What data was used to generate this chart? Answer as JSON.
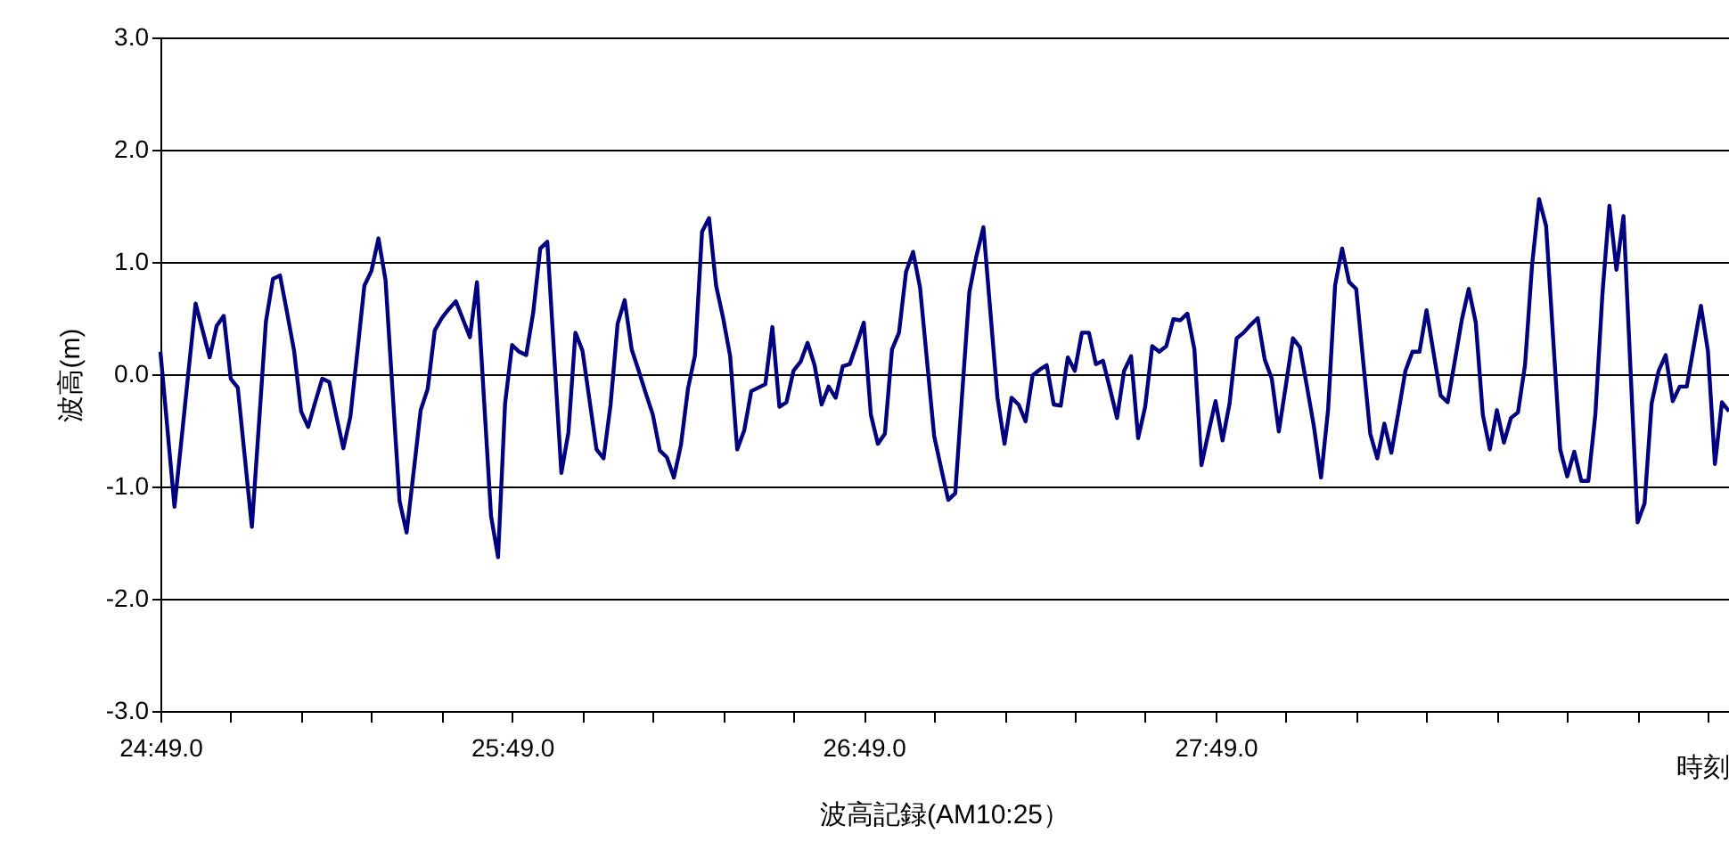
{
  "chart_data": {
    "type": "line",
    "title": "波高記録(AM10:25）",
    "xlabel": "時刻",
    "ylabel": "波高(m)",
    "categories": [
      "24:49.0",
      null,
      null,
      null,
      null,
      null,
      null,
      null,
      null,
      null,
      null,
      null,
      null,
      null,
      null,
      null,
      null,
      null,
      null,
      null,
      null,
      null,
      null,
      null,
      null,
      null,
      null,
      null,
      null,
      null,
      null,
      null,
      null,
      null,
      null,
      null,
      null,
      null,
      null,
      null,
      null,
      null,
      null,
      null,
      null,
      null,
      null,
      null,
      null,
      null,
      "25:49.0",
      null,
      null,
      null,
      null,
      null,
      null,
      null,
      null,
      null,
      null,
      null,
      null,
      null,
      null,
      null,
      null,
      null,
      null,
      null,
      null,
      null,
      null,
      null,
      null,
      null,
      null,
      null,
      null,
      null,
      null,
      null,
      null,
      null,
      null,
      null,
      null,
      null,
      null,
      null,
      null,
      null,
      null,
      null,
      null,
      null,
      null,
      null,
      null,
      null,
      "26:49.0",
      null,
      null,
      null,
      null,
      null,
      null,
      null,
      null,
      null,
      null,
      null,
      null,
      null,
      null,
      null,
      null,
      null,
      null,
      null,
      null,
      null,
      null,
      null,
      null,
      null,
      null,
      null,
      null,
      null,
      null,
      null,
      null,
      null,
      null,
      null,
      null,
      null,
      null,
      null,
      null,
      null,
      null,
      null,
      null,
      null,
      null,
      null,
      null,
      null,
      "27:49.0",
      null,
      null,
      null,
      null,
      null,
      null,
      null,
      null,
      null,
      null,
      null,
      null,
      null,
      null,
      null,
      null,
      null,
      null,
      null,
      null,
      null,
      null,
      null,
      null,
      null,
      null,
      null,
      null,
      null,
      null,
      null,
      null,
      null,
      null,
      null,
      null,
      null,
      null,
      null,
      null,
      null,
      null,
      null,
      null,
      null,
      null,
      null,
      null,
      null,
      null,
      null,
      null,
      null,
      null,
      null,
      null,
      null,
      null,
      null,
      null,
      null,
      null,
      null,
      null,
      null,
      null,
      null,
      null,
      null,
      null,
      null,
      null,
      null
    ],
    "ylim": [
      -3,
      3
    ],
    "yticks": [
      {
        "value": -3,
        "label": "-3.0"
      },
      {
        "value": -2,
        "label": "-2.0"
      },
      {
        "value": -1,
        "label": "-1.0"
      },
      {
        "value": 0,
        "label": "0.0"
      },
      {
        "value": 1,
        "label": "1.0"
      },
      {
        "value": 2,
        "label": "2.0"
      },
      {
        "value": 3,
        "label": "3.0"
      }
    ],
    "grid": "y",
    "marker": "none",
    "line_style": "solid",
    "series": [
      {
        "color": "#000080",
        "values": [
          0.2,
          -0.49,
          -1.18,
          -0.58,
          0.03,
          0.63,
          0.39,
          0.15,
          0.43,
          0.52,
          -0.04,
          -0.12,
          -0.74,
          -1.36,
          -0.45,
          0.47,
          0.85,
          0.88,
          0.55,
          0.21,
          -0.33,
          -0.47,
          -0.25,
          -0.04,
          -0.07,
          -0.37,
          -0.66,
          -0.38,
          0.2,
          0.79,
          0.92,
          1.21,
          0.84,
          -0.15,
          -1.13,
          -1.41,
          -0.87,
          -0.32,
          -0.13,
          0.39,
          0.5,
          0.58,
          0.65,
          0.49,
          0.33,
          0.82,
          -0.22,
          -1.26,
          -1.63,
          -0.26,
          0.26,
          0.2,
          0.17,
          0.55,
          1.12,
          1.18,
          0.15,
          -0.88,
          -0.52,
          0.37,
          0.21,
          -0.23,
          -0.67,
          -0.75,
          -0.27,
          0.45,
          0.66,
          0.22,
          0.03,
          -0.17,
          -0.36,
          -0.68,
          -0.74,
          -0.92,
          -0.63,
          -0.13,
          0.17,
          1.27,
          1.39,
          0.79,
          0.5,
          0.16,
          -0.67,
          -0.5,
          -0.15,
          -0.12,
          -0.09,
          0.42,
          -0.29,
          -0.25,
          0.03,
          0.11,
          0.28,
          0.08,
          -0.27,
          -0.11,
          -0.21,
          0.07,
          0.09,
          0.27,
          0.46,
          -0.36,
          -0.62,
          -0.53,
          0.22,
          0.37,
          0.91,
          1.09,
          0.77,
          0.11,
          -0.55,
          -0.84,
          -1.12,
          -1.06,
          -0.16,
          0.73,
          1.05,
          1.31,
          0.55,
          -0.21,
          -0.62,
          -0.21,
          -0.27,
          -0.42,
          -0.01,
          0.04,
          0.08,
          -0.27,
          -0.28,
          0.15,
          0.03,
          0.37,
          0.37,
          0.09,
          0.12,
          -0.13,
          -0.39,
          0.03,
          0.16,
          -0.57,
          -0.29,
          0.25,
          0.2,
          0.25,
          0.49,
          0.48,
          0.54,
          0.22,
          -0.81,
          -0.52,
          -0.24,
          -0.59,
          -0.26,
          0.32,
          0.37,
          0.44,
          0.5,
          0.13,
          -0.04,
          -0.51,
          -0.1,
          0.32,
          0.24,
          -0.11,
          -0.47,
          -0.92,
          -0.32,
          0.79,
          1.12,
          0.82,
          0.76,
          0.11,
          -0.53,
          -0.75,
          -0.44,
          -0.7,
          -0.34,
          0.03,
          0.2,
          0.2,
          0.57,
          0.19,
          -0.19,
          -0.25,
          0.11,
          0.48,
          0.76,
          0.46,
          -0.36,
          -0.67,
          -0.32,
          -0.61,
          -0.39,
          -0.34,
          0.08,
          0.97,
          1.56,
          1.32,
          0.32,
          -0.67,
          -0.91,
          -0.69,
          -0.95,
          -0.95,
          -0.36,
          0.71,
          1.5,
          0.93,
          1.41,
          0.04,
          -1.32,
          -1.15,
          -0.26,
          0.03,
          0.17,
          -0.24,
          -0.11,
          -0.11,
          0.25,
          0.61,
          0.21,
          -0.8,
          -0.25,
          -0.33
        ]
      }
    ]
  }
}
